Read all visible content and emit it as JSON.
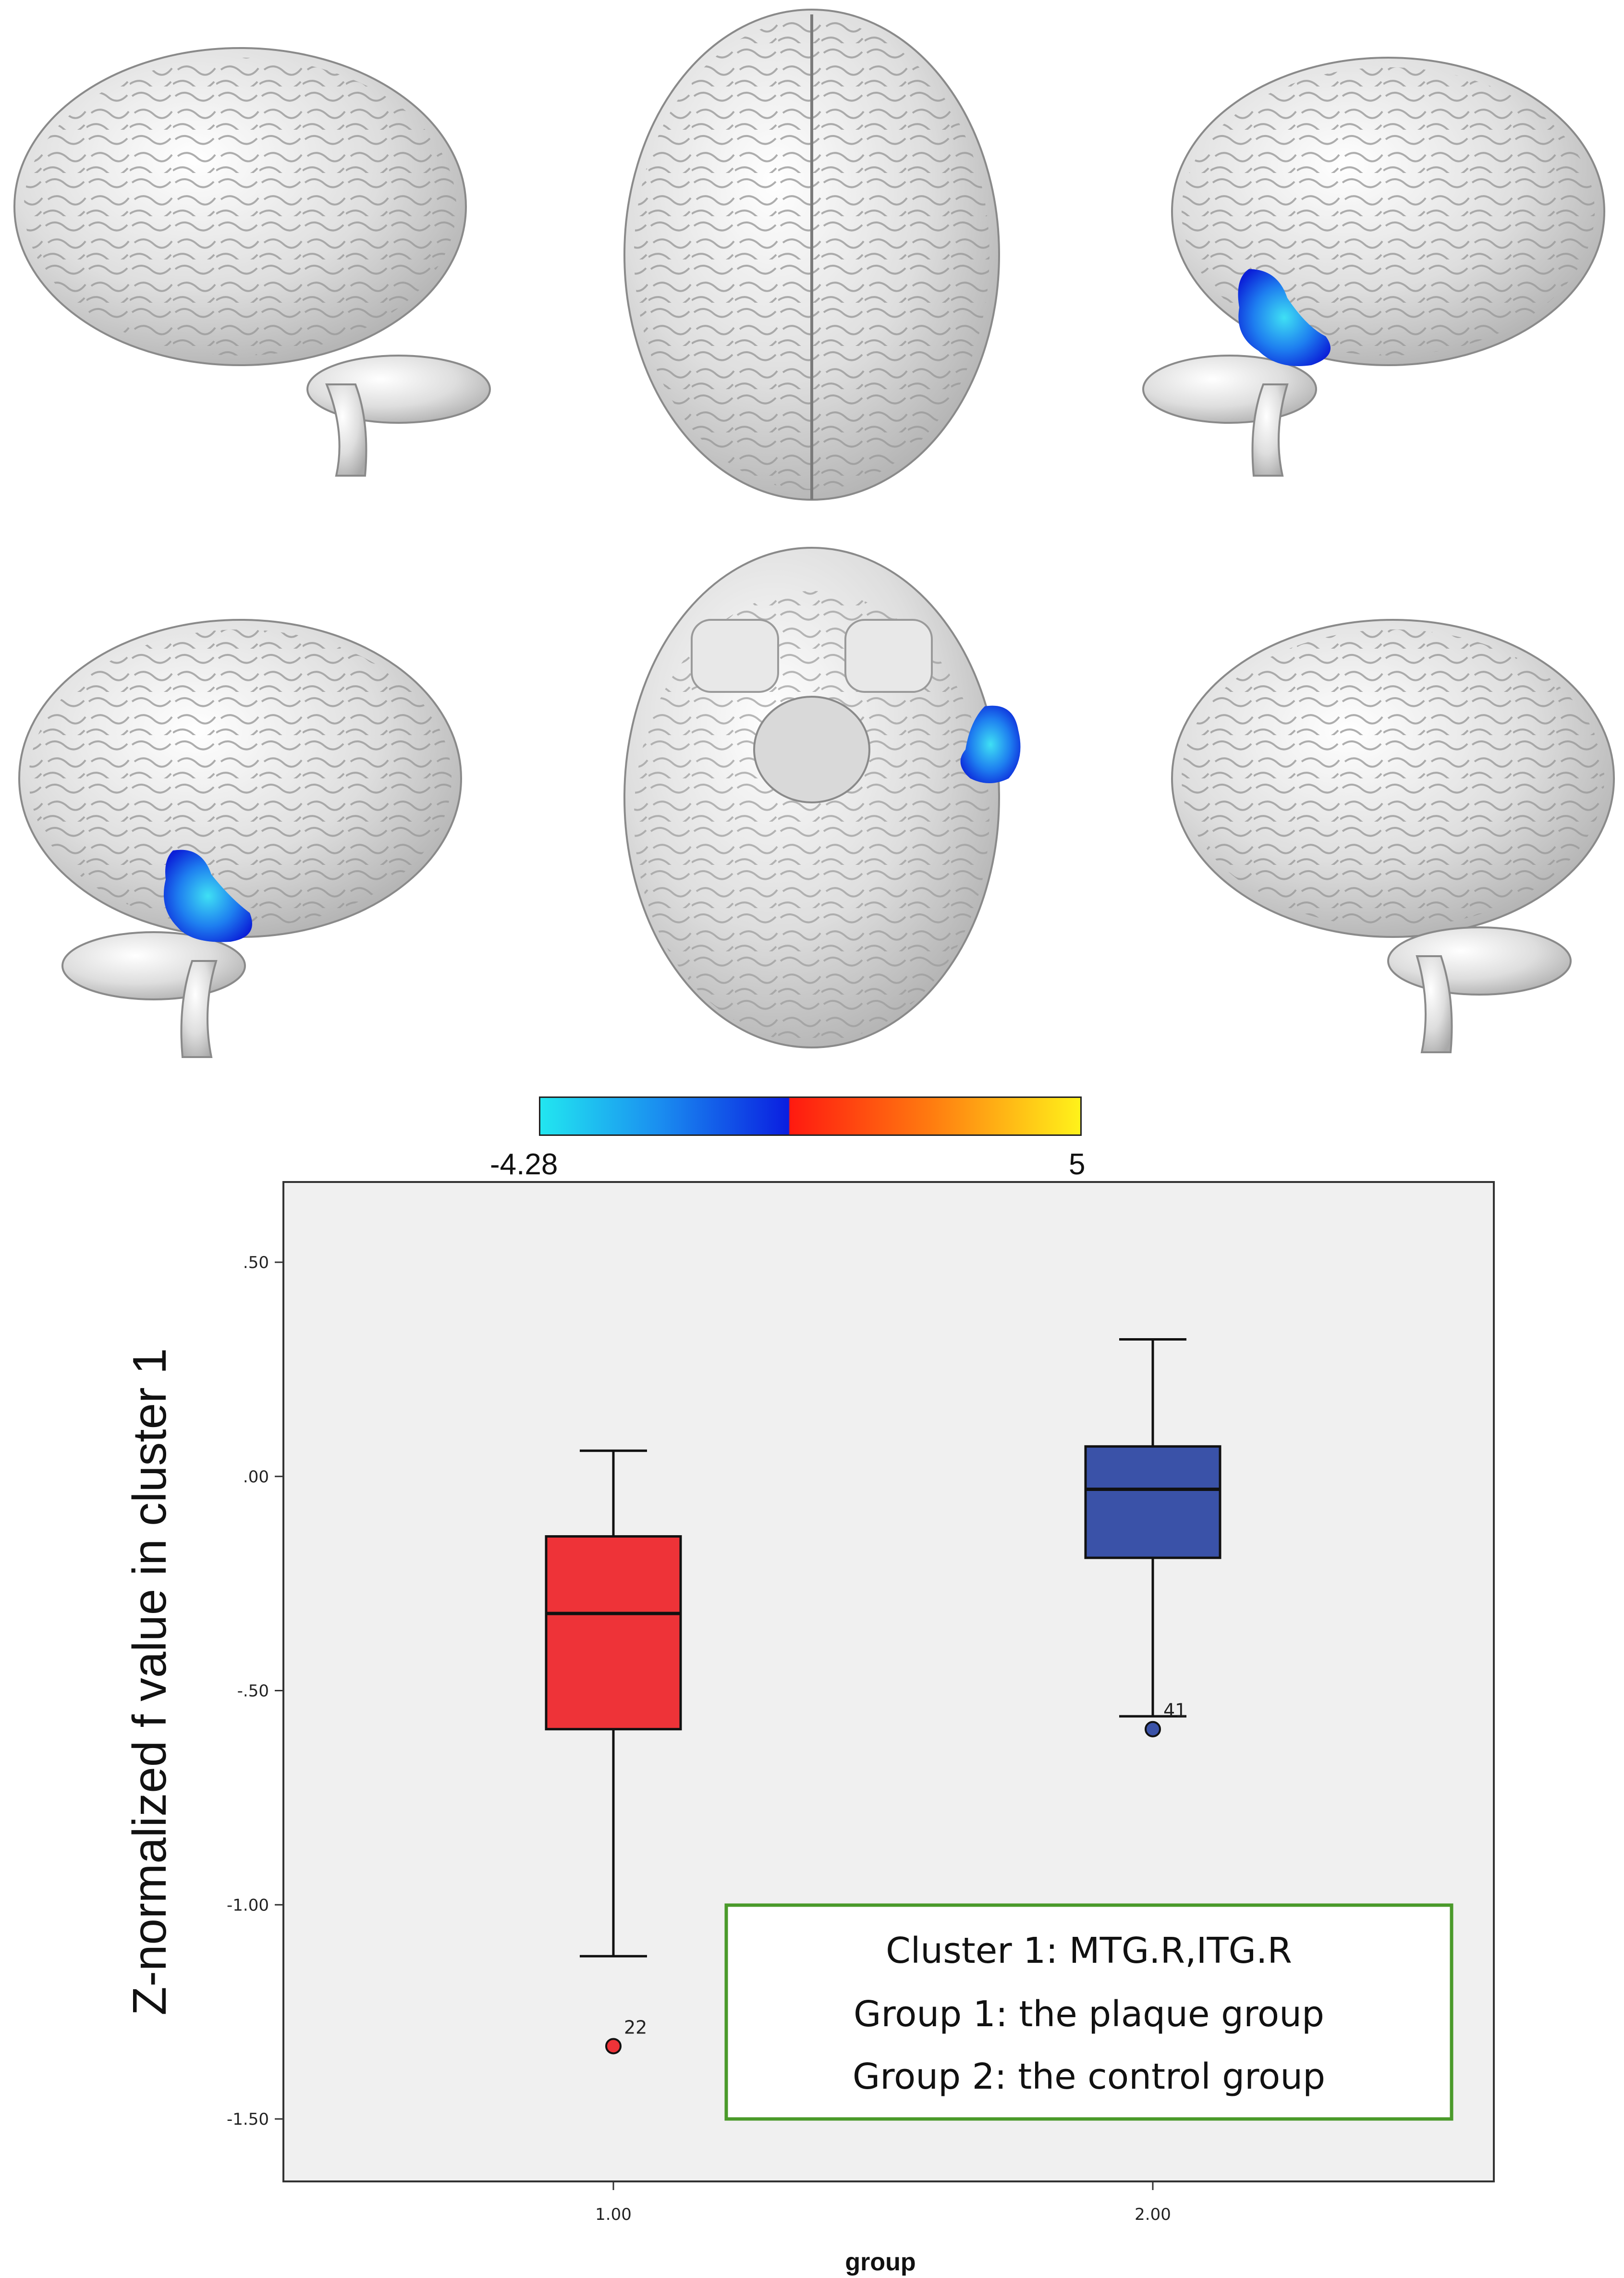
{
  "brain_views": [
    {
      "name": "left-lateral-view",
      "cluster": false
    },
    {
      "name": "superior-view",
      "cluster": false
    },
    {
      "name": "right-lateral-view",
      "cluster": true
    },
    {
      "name": "right-oblique-view",
      "cluster": true
    },
    {
      "name": "inferior-view",
      "cluster": true
    },
    {
      "name": "left-oblique-view",
      "cluster": false
    }
  ],
  "colorbar": {
    "min_label": "-4.28",
    "max_label": "5",
    "colors": [
      "#22e6f0",
      "#1a8ef0",
      "#0a1ee0",
      "#ff1a10",
      "#ff7a10",
      "#fff21a"
    ]
  },
  "chart_data": {
    "type": "boxplot",
    "ylabel": "Z-normalized f value in cluster 1",
    "xlabel": "group",
    "categories": [
      "1.00",
      "2.00"
    ],
    "ylim": [
      -1.58,
      0.58
    ],
    "yticks": [
      {
        "value": 0.5,
        "label": ".50"
      },
      {
        "value": 0.0,
        "label": ".00"
      },
      {
        "value": -0.5,
        "label": "-.50"
      },
      {
        "value": -1.0,
        "label": "-1.00"
      },
      {
        "value": -1.5,
        "label": "-1.50"
      }
    ],
    "boxes": [
      {
        "category": "1.00",
        "color": "#ee3338",
        "min": -1.12,
        "q1": -0.59,
        "median": -0.32,
        "q3": -0.14,
        "max": 0.06,
        "outliers": [
          {
            "value": -1.33,
            "label": "22"
          }
        ]
      },
      {
        "category": "2.00",
        "color": "#3a52a8",
        "min": -0.56,
        "q1": -0.19,
        "median": -0.03,
        "q3": 0.07,
        "max": 0.32,
        "outliers": [
          {
            "value": -0.59,
            "label": "41"
          }
        ]
      }
    ],
    "grid": false,
    "annotation_box": {
      "position": "bottom-right",
      "border_color": "#4a9a2a",
      "lines": [
        "Cluster 1: MTG.R,ITG.R",
        "Group 1: the plaque group",
        "Group 2: the control group"
      ]
    }
  }
}
